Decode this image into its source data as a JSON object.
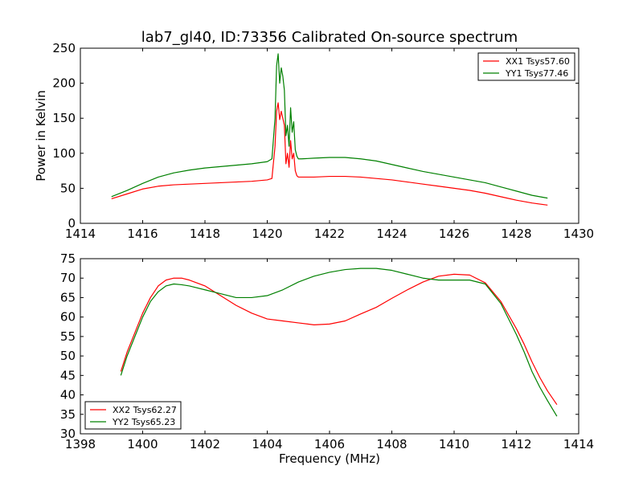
{
  "chart_data": [
    {
      "type": "line",
      "title": "lab7_gl40, ID:73356 Calibrated On-source spectrum",
      "xlabel": "",
      "ylabel": "Power in Kelvin",
      "xlim": [
        1414,
        1430
      ],
      "ylim": [
        0,
        250
      ],
      "xticks": [
        1414,
        1416,
        1418,
        1420,
        1422,
        1424,
        1426,
        1428,
        1430
      ],
      "yticks": [
        0,
        50,
        100,
        150,
        200,
        250
      ],
      "grid": false,
      "legend_position": "top-right",
      "series": [
        {
          "name": "XX1 Tsys57.60",
          "color": "#ff0000",
          "x": [
            1415.0,
            1415.5,
            1416.0,
            1416.5,
            1417.0,
            1417.5,
            1418.0,
            1418.5,
            1419.0,
            1419.5,
            1420.0,
            1420.15,
            1420.25,
            1420.3,
            1420.35,
            1420.4,
            1420.45,
            1420.5,
            1420.55,
            1420.6,
            1420.65,
            1420.7,
            1420.75,
            1420.8,
            1420.85,
            1420.9,
            1420.95,
            1421.0,
            1421.1,
            1421.5,
            1422.0,
            1422.5,
            1423.0,
            1423.5,
            1424.0,
            1424.5,
            1425.0,
            1425.5,
            1426.0,
            1426.5,
            1427.0,
            1427.5,
            1428.0,
            1428.5,
            1429.0
          ],
          "y": [
            35,
            42,
            49,
            53,
            55,
            56,
            57,
            58,
            59,
            60,
            62,
            64,
            110,
            160,
            172,
            148,
            160,
            150,
            140,
            85,
            100,
            80,
            118,
            92,
            100,
            75,
            68,
            66,
            66,
            66,
            67,
            67,
            66,
            64,
            62,
            59,
            56,
            53,
            50,
            47,
            43,
            38,
            33,
            29,
            26
          ]
        },
        {
          "name": "YY1 Tsys77.46",
          "color": "#008000",
          "x": [
            1415.0,
            1415.5,
            1416.0,
            1416.5,
            1417.0,
            1417.5,
            1418.0,
            1418.5,
            1419.0,
            1419.5,
            1420.0,
            1420.15,
            1420.25,
            1420.3,
            1420.35,
            1420.4,
            1420.45,
            1420.5,
            1420.55,
            1420.6,
            1420.65,
            1420.7,
            1420.75,
            1420.8,
            1420.85,
            1420.9,
            1420.95,
            1421.0,
            1421.1,
            1421.5,
            1422.0,
            1422.5,
            1423.0,
            1423.5,
            1424.0,
            1424.5,
            1425.0,
            1425.5,
            1426.0,
            1426.5,
            1427.0,
            1427.5,
            1428.0,
            1428.5,
            1429.0
          ],
          "y": [
            38,
            47,
            57,
            66,
            72,
            76,
            79,
            81,
            83,
            85,
            88,
            92,
            150,
            225,
            242,
            200,
            222,
            210,
            190,
            125,
            140,
            110,
            165,
            130,
            145,
            105,
            96,
            92,
            92,
            93,
            94,
            94,
            92,
            89,
            84,
            79,
            74,
            70,
            66,
            62,
            58,
            52,
            46,
            40,
            36
          ]
        }
      ]
    },
    {
      "type": "line",
      "title": "",
      "xlabel": "Frequency (MHz)",
      "ylabel": "",
      "xlim": [
        1398,
        1414
      ],
      "ylim": [
        30,
        75
      ],
      "xticks": [
        1398,
        1400,
        1402,
        1404,
        1406,
        1408,
        1410,
        1412,
        1414
      ],
      "yticks": [
        30,
        35,
        40,
        45,
        50,
        55,
        60,
        65,
        70,
        75
      ],
      "grid": false,
      "legend_position": "bottom-left",
      "series": [
        {
          "name": "XX2 Tsys62.27",
          "color": "#ff0000",
          "x": [
            1399.3,
            1399.5,
            1399.75,
            1400.0,
            1400.25,
            1400.5,
            1400.75,
            1401.0,
            1401.25,
            1401.5,
            1402.0,
            1402.5,
            1403.0,
            1403.5,
            1404.0,
            1404.5,
            1405.0,
            1405.5,
            1406.0,
            1406.5,
            1407.0,
            1407.5,
            1408.0,
            1408.5,
            1409.0,
            1409.5,
            1410.0,
            1410.5,
            1411.0,
            1411.5,
            1412.0,
            1412.25,
            1412.5,
            1412.75,
            1413.0,
            1413.3
          ],
          "y": [
            46,
            51,
            56,
            61,
            65,
            68,
            69.5,
            70,
            70,
            69.5,
            68,
            65.5,
            63,
            61,
            59.5,
            59,
            58.5,
            58,
            58.2,
            59,
            60.8,
            62.5,
            64.8,
            67,
            69,
            70.5,
            71,
            70.8,
            68.8,
            64,
            57,
            53,
            48.5,
            44.5,
            41,
            37.5
          ]
        },
        {
          "name": "YY2 Tsys65.23",
          "color": "#008000",
          "x": [
            1399.3,
            1399.5,
            1399.75,
            1400.0,
            1400.25,
            1400.5,
            1400.75,
            1401.0,
            1401.25,
            1401.5,
            1402.0,
            1402.5,
            1403.0,
            1403.5,
            1404.0,
            1404.5,
            1405.0,
            1405.5,
            1406.0,
            1406.5,
            1407.0,
            1407.5,
            1408.0,
            1408.5,
            1409.0,
            1409.5,
            1410.0,
            1410.5,
            1411.0,
            1411.5,
            1412.0,
            1412.25,
            1412.5,
            1412.75,
            1413.0,
            1413.3
          ],
          "y": [
            45,
            50,
            55,
            60,
            64,
            66.5,
            68,
            68.5,
            68.3,
            68,
            67,
            66,
            65,
            65,
            65.5,
            67,
            69,
            70.5,
            71.5,
            72.2,
            72.5,
            72.5,
            72,
            71,
            70,
            69.5,
            69.5,
            69.5,
            68.5,
            63.5,
            55.5,
            51,
            46,
            42,
            38.5,
            34.5
          ]
        }
      ]
    }
  ]
}
